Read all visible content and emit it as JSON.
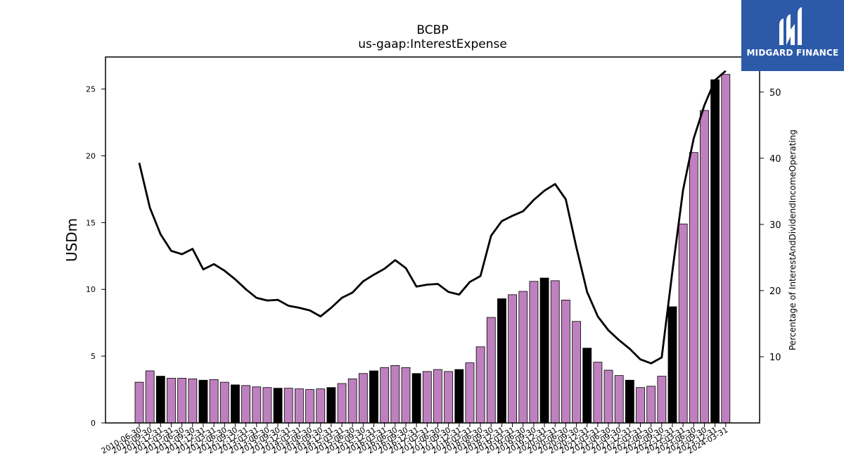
{
  "brand": {
    "name": "MIDGARD FINANCE",
    "color": "#2c5aa8"
  },
  "chart_data": {
    "type": "bar",
    "title": "BCBP",
    "subtitle": "us-gaap:InterestExpense",
    "ylabel": "USDm",
    "y2label": "Percentage of InterestAndDividendIncomeOperating",
    "ylim": [
      0,
      27.4
    ],
    "y2lim": [
      0,
      55.3
    ],
    "yticks": [
      "0",
      "5",
      "10",
      "15",
      "20",
      "25"
    ],
    "y2ticks": [
      "10",
      "20",
      "30",
      "40",
      "50"
    ],
    "colors": {
      "bar": "#bf80bf",
      "bar_highlight": "#000000",
      "line": "#000000"
    },
    "categories": [
      "2010-06-30",
      "2010-09-30",
      "2010-12-31",
      "2011-03-31",
      "2011-06-30",
      "2011-09-30",
      "2011-12-31",
      "2012-03-31",
      "2012-06-30",
      "2012-09-30",
      "2012-12-31",
      "2013-03-31",
      "2013-06-30",
      "2013-09-30",
      "2013-12-31",
      "2014-03-31",
      "2014-06-30",
      "2014-09-30",
      "2014-12-31",
      "2015-03-31",
      "2015-06-30",
      "2015-09-30",
      "2015-12-31",
      "2016-03-31",
      "2016-06-30",
      "2016-09-30",
      "2016-12-31",
      "2017-03-31",
      "2017-06-30",
      "2017-09-30",
      "2017-12-31",
      "2018-03-31",
      "2018-06-30",
      "2018-09-30",
      "2018-12-31",
      "2019-03-31",
      "2019-06-30",
      "2019-09-30",
      "2019-12-31",
      "2020-03-31",
      "2020-06-30",
      "2020-09-30",
      "2020-12-31",
      "2021-03-31",
      "2021-06-30",
      "2021-09-30",
      "2021-12-31",
      "2022-03-31",
      "2022-06-30",
      "2022-09-30",
      "2022-12-31",
      "2023-03-31",
      "2023-06-30",
      "2023-09-30",
      "2023-12-31",
      "2024-03-31"
    ],
    "series": [
      {
        "type": "bar",
        "values": [
          3.05,
          3.9,
          3.5,
          3.35,
          3.35,
          3.3,
          3.2,
          3.25,
          3.05,
          2.85,
          2.8,
          2.7,
          2.65,
          2.6,
          2.6,
          2.55,
          2.5,
          2.55,
          2.65,
          2.95,
          3.3,
          3.7,
          3.9,
          4.15,
          4.3,
          4.15,
          3.7,
          3.85,
          4.0,
          3.85,
          4.0,
          4.5,
          5.7,
          7.9,
          9.3,
          9.6,
          9.85,
          10.6,
          10.85,
          10.65,
          9.2,
          7.6,
          5.6,
          4.55,
          3.95,
          3.55,
          3.2,
          2.65,
          2.75,
          3.5,
          8.7,
          14.9,
          20.25,
          23.4,
          25.7,
          26.1
        ],
        "highlight": [
          false,
          false,
          true,
          false,
          false,
          false,
          true,
          false,
          false,
          true,
          false,
          false,
          false,
          true,
          false,
          false,
          false,
          false,
          true,
          false,
          false,
          false,
          true,
          false,
          false,
          false,
          true,
          false,
          false,
          false,
          true,
          false,
          false,
          false,
          true,
          false,
          false,
          false,
          true,
          false,
          false,
          false,
          true,
          false,
          false,
          false,
          true,
          false,
          false,
          false,
          true,
          false,
          false,
          false,
          true,
          false
        ]
      },
      {
        "type": "line",
        "axis": "right",
        "values": [
          39.3,
          32.5,
          28.5,
          26.0,
          25.5,
          26.3,
          23.2,
          24.0,
          23.0,
          21.7,
          20.2,
          18.9,
          18.5,
          18.6,
          17.7,
          17.4,
          17.0,
          16.1,
          17.4,
          18.9,
          19.7,
          21.4,
          22.4,
          23.3,
          24.6,
          23.4,
          20.6,
          20.9,
          21.0,
          19.8,
          19.4,
          21.3,
          22.2,
          28.3,
          30.5,
          31.3,
          32.0,
          33.7,
          35.1,
          36.1,
          33.8,
          26.5,
          19.8,
          16.1,
          14.0,
          12.5,
          11.2,
          9.6,
          9.0,
          9.9,
          22.9,
          35.2,
          43.0,
          48.0,
          51.8,
          53.2
        ]
      }
    ]
  }
}
